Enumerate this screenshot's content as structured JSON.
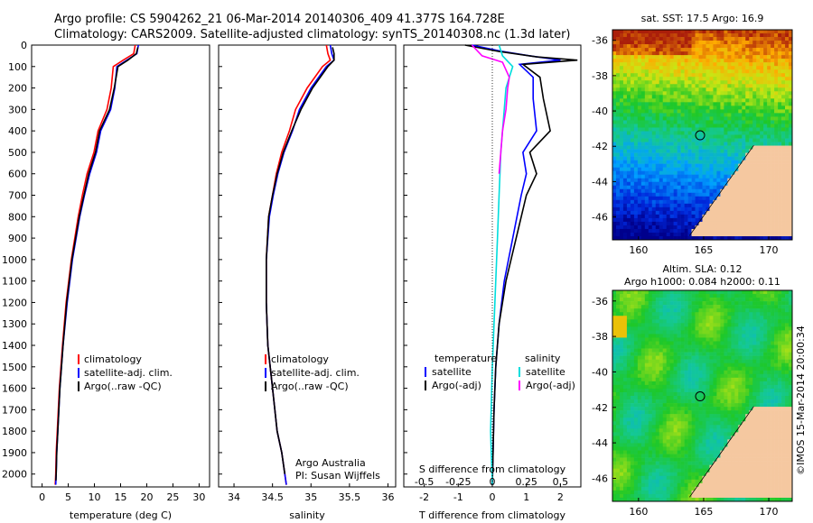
{
  "header": {
    "line1": "Argo profile: CS 5904262_21 06-Mar-2014 20140306_409 41.377S 164.728E",
    "line2": "Climatology: CARS2009. Satellite-adjusted climatology: synTS_20140308.nc (1.3d later)"
  },
  "colors": {
    "climatology": "#ff0000",
    "satellite": "#0000ff",
    "argo": "#000000",
    "s_satellite": "#00dddd",
    "s_argo": "#ff00ff"
  },
  "chart_data": [
    {
      "id": "temp",
      "type": "line",
      "xlabel": "temperature (deg C)",
      "ylabel": "",
      "xlim": [
        -2,
        32
      ],
      "ylim": [
        2060,
        0
      ],
      "xticks": [
        0,
        5,
        10,
        15,
        20,
        25,
        30
      ],
      "xtick_labels": [
        "0",
        "5",
        "10",
        "15",
        "20",
        "25",
        "30"
      ],
      "yticks": [
        0,
        100,
        200,
        300,
        400,
        500,
        600,
        700,
        800,
        900,
        1000,
        1100,
        1200,
        1300,
        1400,
        1500,
        1600,
        1700,
        1800,
        1900,
        2000
      ],
      "ytick_labels": [
        "0",
        "100",
        "200",
        "300",
        "400",
        "500",
        "600",
        "700",
        "800",
        "900",
        "1000",
        "1100",
        "1200",
        "1300",
        "1400",
        "1500",
        "1600",
        "1700",
        "1800",
        "1900",
        "2000"
      ],
      "legend": [
        "climatology",
        "satellite-adj. clim.",
        "Argo(..raw -QC)"
      ],
      "series": [
        {
          "name": "climatology",
          "color": "#ff0000",
          "x": [
            17.8,
            17.5,
            15.5,
            13.6,
            13.2,
            12.4,
            10.7,
            9.9,
            8.6,
            7.7,
            6.9,
            5.6,
            4.6,
            3.9,
            3.3,
            2.9,
            2.7,
            2.6,
            2.55,
            2.5
          ],
          "y": [
            0,
            40,
            70,
            100,
            200,
            300,
            400,
            500,
            600,
            700,
            800,
            1000,
            1200,
            1400,
            1600,
            1800,
            1900,
            2000,
            2030,
            2050
          ]
        },
        {
          "name": "satellite-adj. clim.",
          "color": "#0000ff",
          "x": [
            18.4,
            18.1,
            16.2,
            14.3,
            13.9,
            13.1,
            11.2,
            10.4,
            9.1,
            8.1,
            7.2,
            5.8,
            4.8,
            4.0,
            3.4,
            3.0,
            2.8,
            2.7,
            2.65,
            2.6
          ],
          "y": [
            0,
            40,
            70,
            100,
            200,
            300,
            400,
            500,
            600,
            700,
            800,
            1000,
            1200,
            1400,
            1600,
            1800,
            1900,
            2000,
            2030,
            2050
          ]
        },
        {
          "name": "Argo(..raw -QC)",
          "color": "#000000",
          "x": [
            18.3,
            18.0,
            16.4,
            14.5,
            13.8,
            12.9,
            11.0,
            10.2,
            8.9,
            8.0,
            7.1,
            5.7,
            4.7,
            4.0,
            3.4,
            3.0,
            2.8,
            2.7,
            2.65
          ],
          "y": [
            10,
            40,
            70,
            100,
            200,
            300,
            400,
            500,
            600,
            700,
            800,
            1000,
            1200,
            1400,
            1600,
            1800,
            1900,
            2000,
            2030
          ]
        }
      ]
    },
    {
      "id": "sal",
      "type": "line",
      "xlabel": "salinity",
      "ylabel": "",
      "xlim": [
        33.8,
        36.1
      ],
      "ylim": [
        2060,
        0
      ],
      "xticks": [
        34,
        34.5,
        35,
        35.5,
        36
      ],
      "xtick_labels": [
        "34",
        "34.5",
        "35",
        "35.5",
        "36"
      ],
      "legend": [
        "climatology",
        "satellite-adj. clim.",
        "Argo(..raw -QC)"
      ],
      "annotation": [
        "Argo Australia",
        "PI: Susan Wijffels"
      ],
      "series": [
        {
          "name": "climatology",
          "color": "#ff0000",
          "x": [
            35.2,
            35.22,
            35.25,
            35.15,
            34.95,
            34.8,
            34.72,
            34.62,
            34.55,
            34.5,
            34.45,
            34.42,
            34.42,
            34.44,
            34.5,
            34.56,
            34.62,
            34.66,
            34.68
          ],
          "y": [
            0,
            40,
            70,
            100,
            200,
            300,
            400,
            500,
            600,
            700,
            800,
            1000,
            1200,
            1400,
            1600,
            1800,
            1900,
            2000,
            2050
          ]
        },
        {
          "name": "satellite-adj. clim.",
          "color": "#0000ff",
          "x": [
            35.25,
            35.27,
            35.3,
            35.2,
            35.0,
            34.85,
            34.76,
            34.65,
            34.57,
            34.51,
            34.46,
            34.42,
            34.42,
            34.44,
            34.5,
            34.56,
            34.62,
            34.66,
            34.68
          ],
          "y": [
            0,
            40,
            70,
            100,
            200,
            300,
            400,
            500,
            600,
            700,
            800,
            1000,
            1200,
            1400,
            1600,
            1800,
            1900,
            2000,
            2050
          ]
        },
        {
          "name": "Argo(..raw -QC)",
          "color": "#000000",
          "x": [
            35.28,
            35.3,
            35.3,
            35.22,
            35.02,
            34.87,
            34.75,
            34.64,
            34.56,
            34.5,
            34.45,
            34.42,
            34.42,
            34.44,
            34.5,
            34.56,
            34.62,
            34.66
          ],
          "y": [
            10,
            40,
            70,
            100,
            200,
            300,
            400,
            500,
            600,
            700,
            800,
            1000,
            1200,
            1400,
            1600,
            1800,
            1900,
            2000
          ]
        }
      ]
    },
    {
      "id": "diff",
      "type": "line",
      "xlabel": "T difference from climatology",
      "x2label": "S difference from climatology",
      "xlim": [
        -2.6,
        2.6
      ],
      "ylim": [
        2060,
        0
      ],
      "xticks": [
        -2,
        -1,
        0,
        1,
        2
      ],
      "xtick_labels": [
        "-2",
        "-1",
        "0",
        "1",
        "2"
      ],
      "x2ticks": [
        -2,
        -1,
        0,
        1,
        2
      ],
      "x2tick_labels": [
        "-0.5",
        "-0.25",
        "0",
        "0.25",
        "0.5"
      ],
      "legend_temperature": [
        "temperature",
        "satellite",
        "Argo(-adj)"
      ],
      "legend_salinity": [
        "salinity",
        "satellite",
        "Argo(-adj)"
      ],
      "series": [
        {
          "name": "satellite",
          "group": "temperature",
          "color": "#0000ff",
          "x": [
            -0.6,
            0.3,
            1.1,
            2.0,
            0.8,
            1.2,
            1.2,
            1.3,
            0.9,
            1.0,
            0.85,
            0.6,
            0.35,
            0.2,
            0.1,
            0.05,
            0.02,
            0.0
          ],
          "y": [
            0,
            30,
            50,
            70,
            90,
            150,
            250,
            400,
            500,
            600,
            700,
            900,
            1100,
            1300,
            1500,
            1700,
            1900,
            2050
          ]
        },
        {
          "name": "Argo(-adj)",
          "group": "temperature",
          "color": "#000000",
          "x": [
            -0.8,
            0.2,
            1.3,
            2.5,
            0.9,
            1.4,
            1.5,
            1.7,
            1.1,
            1.3,
            1.0,
            0.7,
            0.4,
            0.2,
            0.1,
            0.05,
            0.02,
            0.0
          ],
          "y": [
            0,
            30,
            55,
            70,
            90,
            150,
            250,
            400,
            500,
            600,
            700,
            900,
            1100,
            1300,
            1500,
            1700,
            1900,
            2050
          ]
        },
        {
          "name": "satellite",
          "group": "salinity",
          "color": "#00dddd",
          "x": [
            0.2,
            0.3,
            0.6,
            0.4,
            0.35,
            0.3,
            0.25,
            0.2,
            0.15,
            0.1,
            0.05,
            0.0,
            -0.05,
            0.0
          ],
          "y": [
            0,
            50,
            100,
            200,
            300,
            400,
            500,
            700,
            900,
            1100,
            1300,
            1500,
            1800,
            2050
          ]
        },
        {
          "name": "Argo(-adj)",
          "group": "salinity",
          "color": "#ff00ff",
          "x": [
            -0.6,
            -0.3,
            0.3,
            0.5,
            0.45,
            0.4,
            0.3,
            0.25,
            0.2
          ],
          "y": [
            0,
            50,
            80,
            150,
            200,
            300,
            400,
            500,
            600
          ]
        }
      ]
    },
    {
      "id": "sst_map",
      "type": "heatmap",
      "title": "sat. SST: 17.5  Argo: 16.9",
      "xlim": [
        158,
        171.8
      ],
      "ylim": [
        -47.3,
        -35.4
      ],
      "xticks": [
        160,
        165,
        170
      ],
      "xtick_labels": [
        "160",
        "165",
        "170"
      ],
      "yticks": [
        -36,
        -38,
        -40,
        -42,
        -44,
        -46
      ],
      "ytick_labels": [
        "-36",
        "-38",
        "-40",
        "-42",
        "-44",
        "-46"
      ],
      "marker": {
        "lon": 164.728,
        "lat": -41.377
      }
    },
    {
      "id": "sla_map",
      "type": "heatmap",
      "title_line1": "Altim. SLA: 0.12",
      "title_line2": "Argo h1000: 0.084 h2000: 0.11",
      "xlim": [
        158,
        171.8
      ],
      "ylim": [
        -47.3,
        -35.4
      ],
      "xticks": [
        160,
        165,
        170
      ],
      "xtick_labels": [
        "160",
        "165",
        "170"
      ],
      "yticks": [
        -36,
        -38,
        -40,
        -42,
        -44,
        -46
      ],
      "ytick_labels": [
        "-36",
        "-38",
        "-40",
        "-42",
        "-44",
        "-46"
      ],
      "marker": {
        "lon": 164.728,
        "lat": -41.377
      },
      "side_label": "©IMOS 15-Mar-2014 20:00:34"
    }
  ]
}
